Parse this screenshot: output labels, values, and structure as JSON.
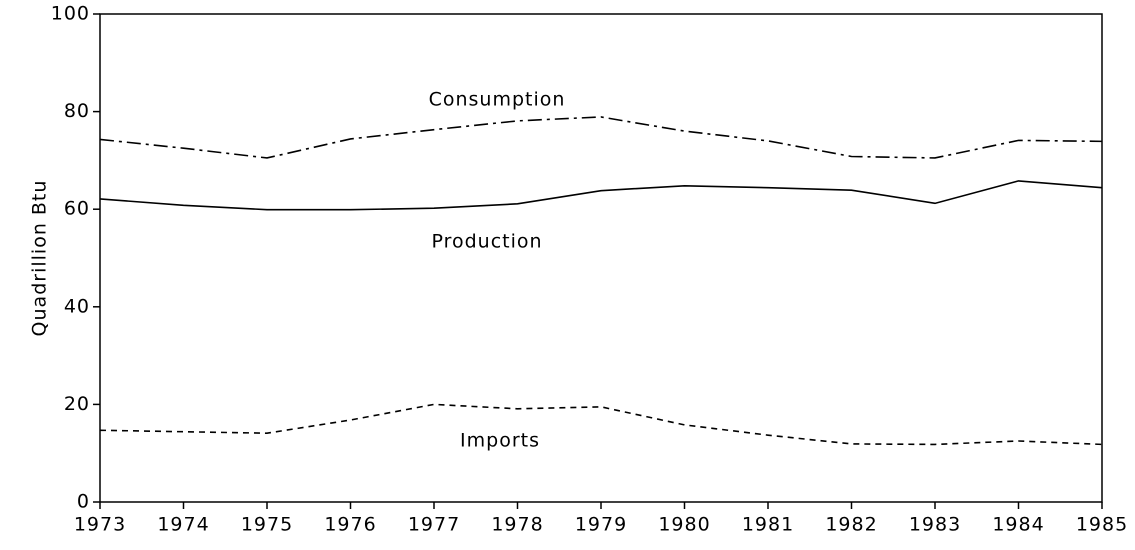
{
  "chart_data": {
    "type": "line",
    "ylabel": "Quadrillion Btu",
    "x": [
      1973,
      1974,
      1975,
      1976,
      1977,
      1978,
      1979,
      1980,
      1981,
      1982,
      1983,
      1984,
      1985
    ],
    "series": [
      {
        "name": "Consumption",
        "color": "#000000",
        "style": "dashdot",
        "values": [
          74.3,
          72.5,
          70.5,
          74.4,
          76.3,
          78.1,
          78.9,
          76.0,
          74.0,
          70.8,
          70.5,
          74.1,
          73.9
        ]
      },
      {
        "name": "Production",
        "color": "#000000",
        "style": "solid",
        "values": [
          62.1,
          60.8,
          59.9,
          59.9,
          60.2,
          61.1,
          63.8,
          64.8,
          64.4,
          63.9,
          61.2,
          65.8,
          64.4
        ]
      },
      {
        "name": "Imports",
        "color": "#000000",
        "style": "dashed",
        "values": [
          14.7,
          14.4,
          14.1,
          16.8,
          20.0,
          19.1,
          19.5,
          15.8,
          13.7,
          11.9,
          11.8,
          12.5,
          11.8
        ]
      }
    ],
    "xlim": [
      1973,
      1985
    ],
    "xticks": [
      1973,
      1974,
      1975,
      1976,
      1977,
      1978,
      1979,
      1980,
      1981,
      1982,
      1983,
      1984,
      1985
    ],
    "ylim": [
      0,
      100
    ],
    "yticks": [
      0,
      20,
      40,
      60,
      80,
      100
    ],
    "grid": false
  }
}
